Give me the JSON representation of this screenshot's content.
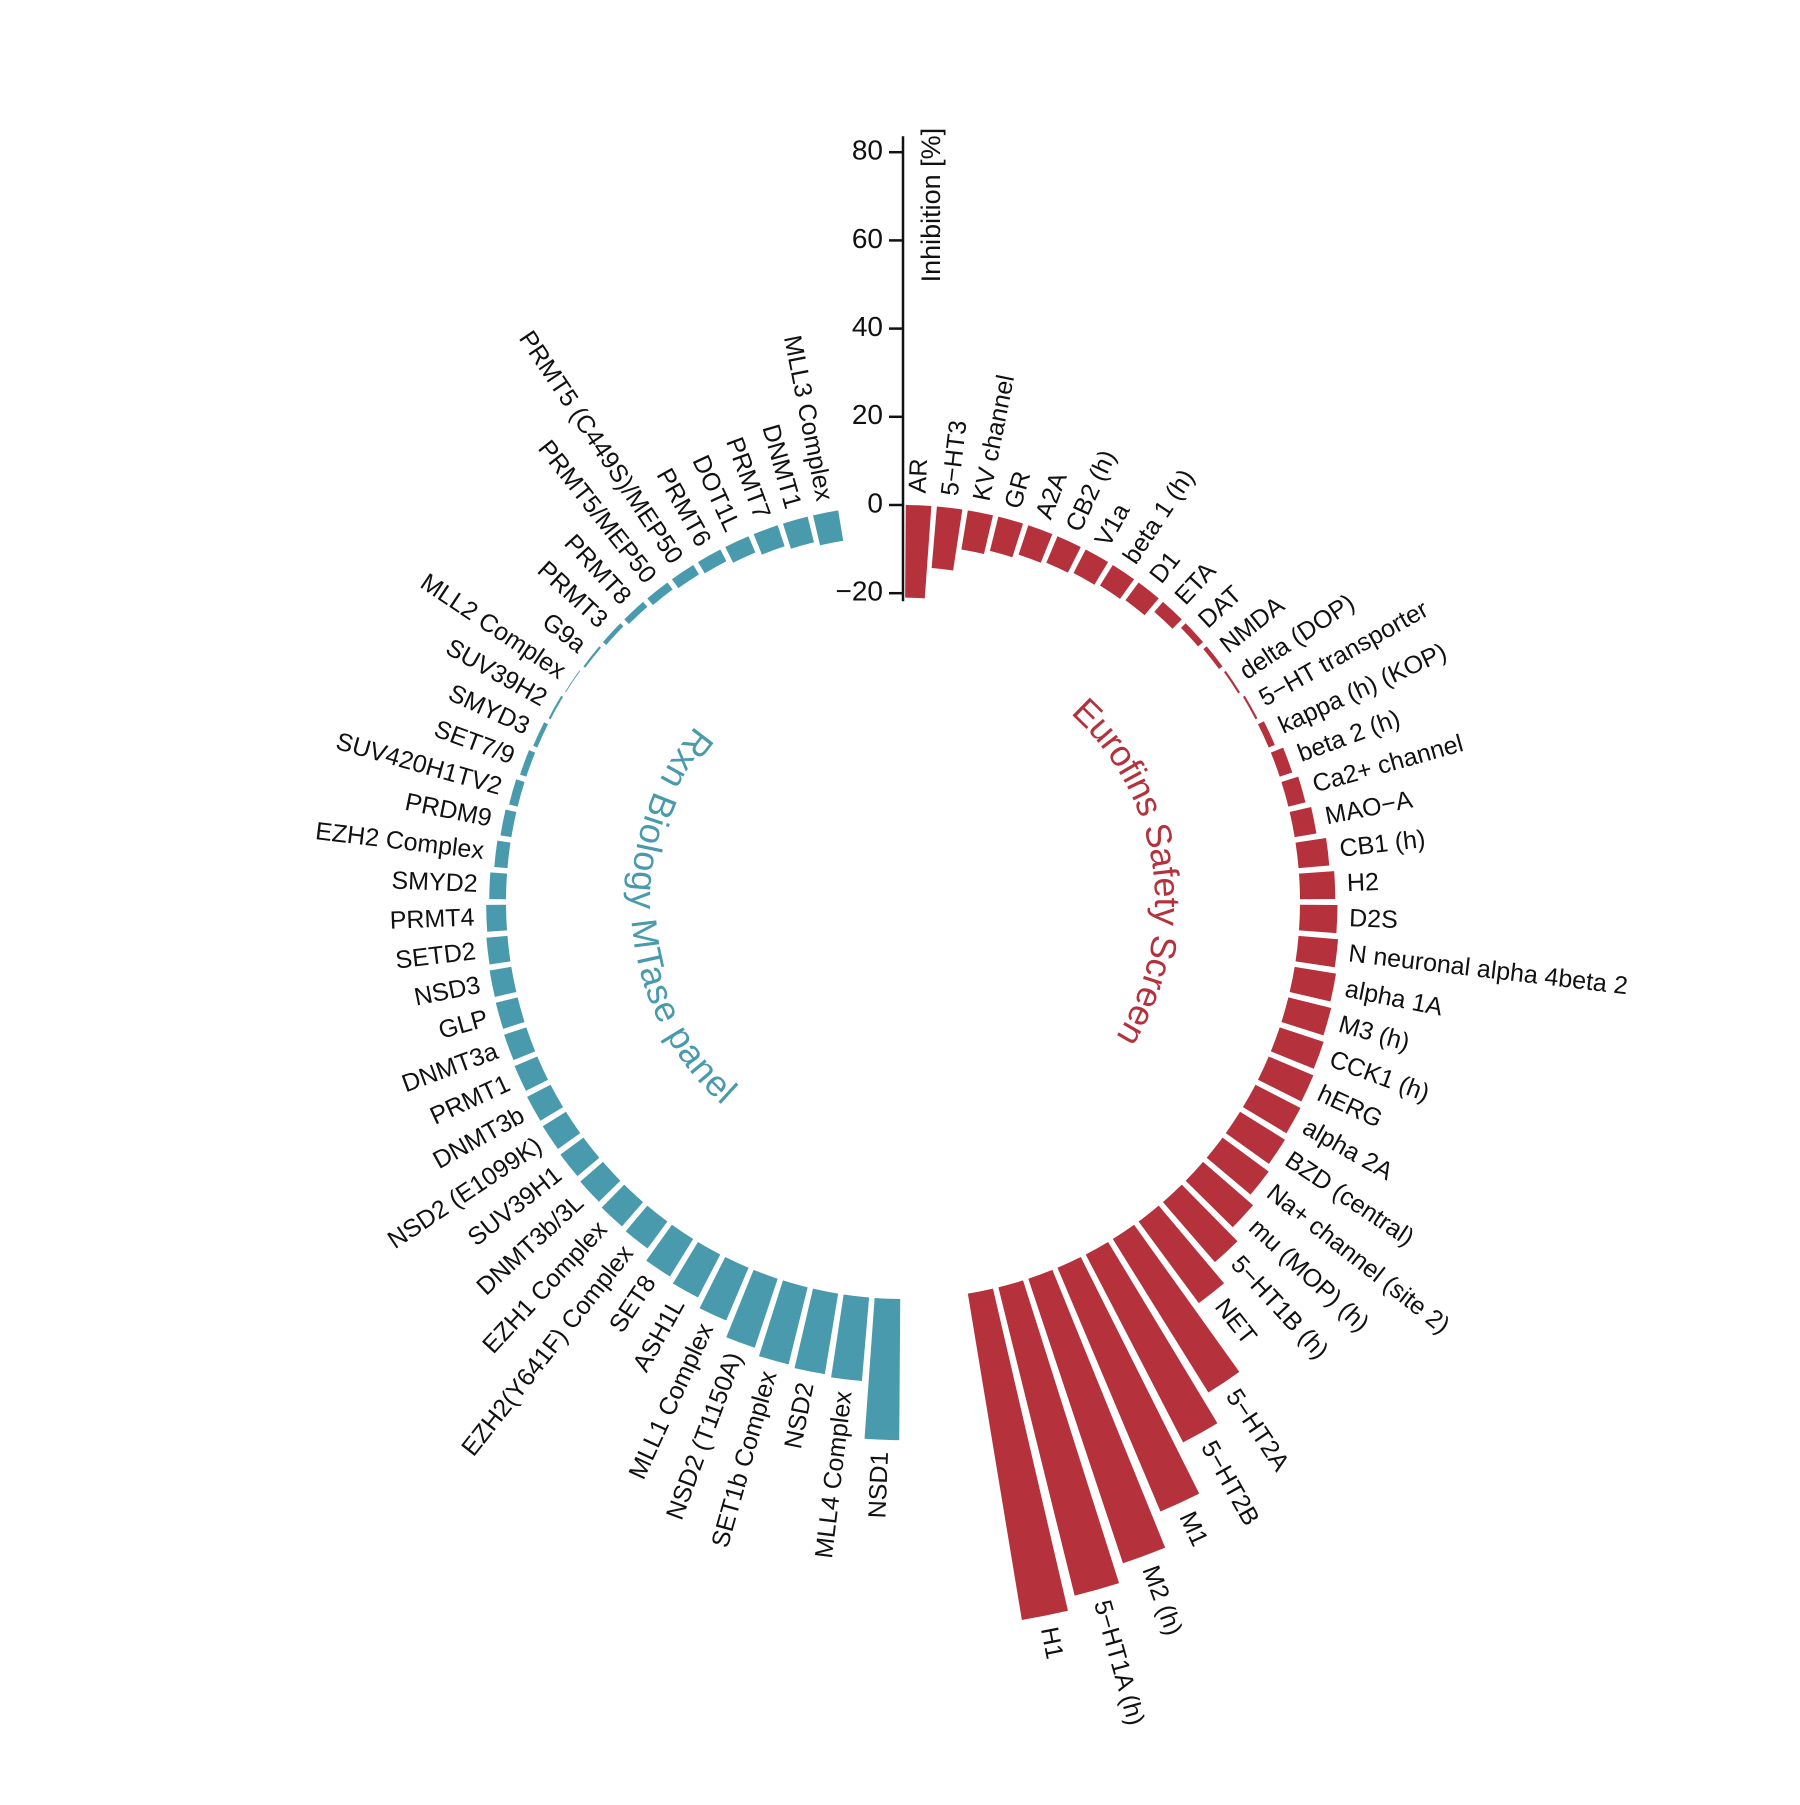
{
  "chart_data": {
    "type": "polar_bar",
    "y_label": "Inhibition [%]",
    "ylim": [
      -20,
      80
    ],
    "yticks": [
      {
        "value": -20,
        "label": "−20"
      },
      0,
      20,
      40,
      60,
      80
    ],
    "series": [
      {
        "name": "Eurofins Safety Screen",
        "color": "#b5323c",
        "categories": [
          "AR",
          "5−HT3",
          "KV channel",
          "GR",
          "A2A",
          "CB2 (h)",
          "V1a",
          "beta 1 (h)",
          "D1",
          "ETA",
          "DAT",
          "NMDA",
          "delta  (DOP)",
          "5−HT transporter",
          "kappa (h) (KOP)",
          "beta 2 (h)",
          "Ca2+ channel",
          "MAO−A",
          "CB1 (h)",
          "H2",
          "D2S",
          "N neuronal alpha 4beta 2",
          "alpha 1A",
          "M3 (h)",
          "CCK1 (h)",
          "hERG",
          "alpha 2A",
          "BZD (central)",
          "Na+ channel (site 2)",
          "mu  (MOP) (h)",
          "5−HT1B (h)",
          "NET",
          "5−HT2A",
          "5−HT2B",
          "M1",
          "M2 (h)",
          "5−HT1A (h)",
          "H1"
        ],
        "values": [
          -21,
          -14,
          -9,
          -8,
          -7,
          -6.5,
          -6,
          -5.5,
          -5,
          -3,
          -1.5,
          -1,
          -0.5,
          0.5,
          1.5,
          3,
          4,
          5,
          7,
          8,
          8.5,
          9,
          9.5,
          10,
          10.5,
          11,
          11.5,
          12,
          13,
          15,
          18,
          23,
          41,
          48,
          60,
          68,
          72,
          75
        ]
      },
      {
        "name": "Rxn Biology MTase panel",
        "color": "#4a9aad",
        "categories": [
          "NSD1",
          "MLL4 Complex",
          "NSD2",
          "SET1b Complex",
          "NSD2 (T1150A)",
          "MLL1 Complex",
          "ASH1L",
          "SET8",
          "EZH2(Y641F) Complex",
          "EZH1 Complex",
          "DNMT3b/3L",
          "SUV39H1",
          "NSD2 (E1099K)",
          "DNMT3b",
          "PRMT1",
          "DNMT3a",
          "GLP",
          "NSD3",
          "SETD2",
          "PRMT4",
          "SMYD2",
          "EZH2 Complex",
          "PRDM9",
          "SUV420H1TV2",
          "SET7/9",
          "SMYD3",
          "SUV39H2",
          "MLL2 Complex",
          "G9a",
          "PRMT3",
          "PRMT8",
          "PRMT5/MEP50",
          "PRMT5 (C449S)/MEP50",
          "PRMT6",
          "DOT1L",
          "PRMT7",
          "DNMT1",
          "MLL3 Complex"
        ],
        "values": [
          32,
          19,
          18.5,
          18,
          16.5,
          13,
          11,
          10,
          7.6,
          7.3,
          6.8,
          6.5,
          6.2,
          6,
          5.6,
          5.3,
          5.1,
          5,
          4.8,
          4.5,
          3.8,
          3,
          2.5,
          2,
          1.5,
          1,
          0.5,
          0.2,
          -0.5,
          -1,
          -1.5,
          -2,
          -2.5,
          -3,
          -4,
          -5,
          -6,
          -7
        ]
      }
    ]
  }
}
